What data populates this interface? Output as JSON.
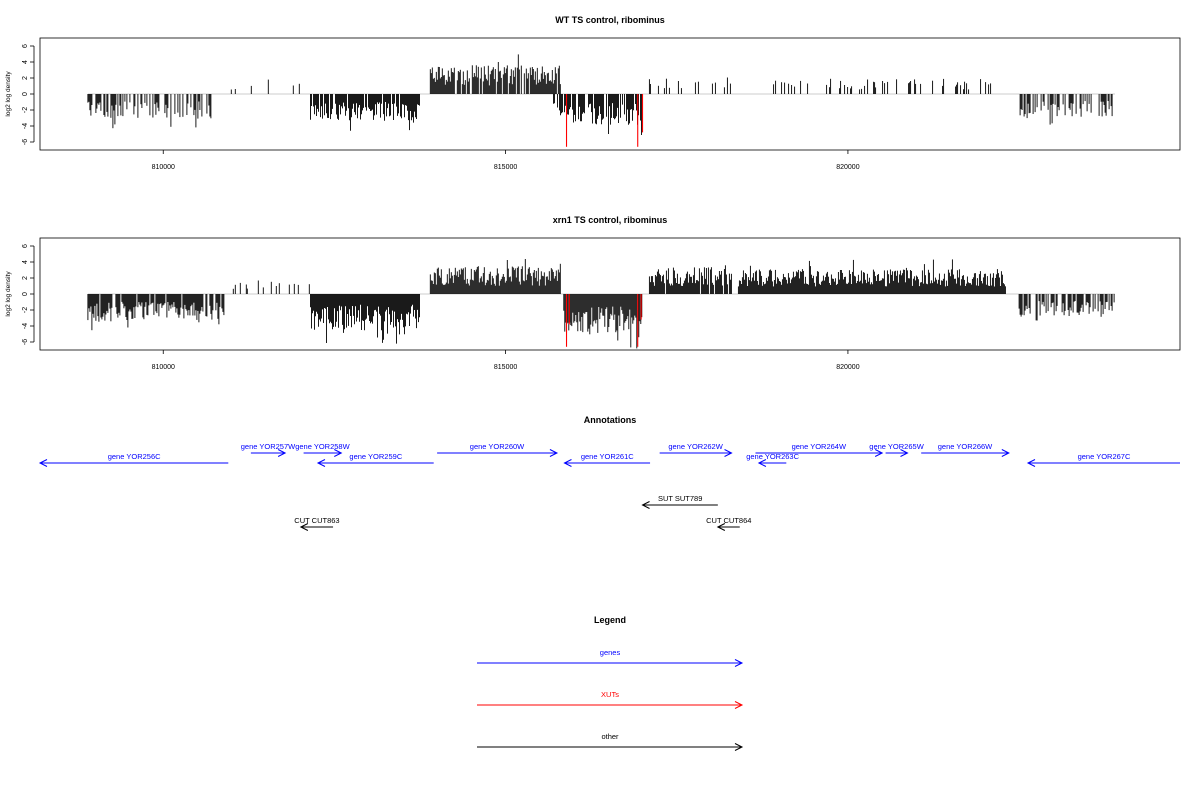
{
  "colors": {
    "gene": "#0000ff",
    "xut": "#ff0000",
    "other": "#000000",
    "bar": "#000000",
    "highlight": "#ff0000",
    "baseline": "#bdbdbd"
  },
  "chart_data": [
    {
      "type": "bar",
      "title": "WT TS control, ribominus",
      "ylabel": "log2 log density",
      "xlim": [
        808200,
        824850
      ],
      "ylim": [
        -7,
        7
      ],
      "yticks": [
        -6,
        -4,
        -2,
        0,
        2,
        4,
        6
      ],
      "xticks": [
        810000,
        815000,
        820000
      ],
      "xtick_labels": [
        "810000",
        "815000",
        "820000"
      ],
      "regions": [
        {
          "start": 808900,
          "end": 810700,
          "strand": "-",
          "level": 2.6,
          "density": 0.055
        },
        {
          "start": 810950,
          "end": 812150,
          "strand": "+",
          "level": 1.2,
          "density": 0.006
        },
        {
          "start": 812150,
          "end": 813750,
          "strand": "-",
          "level": 2.8,
          "density": 0.09
        },
        {
          "start": 813900,
          "end": 815800,
          "strand": "+",
          "level": 3.0,
          "density": 0.085
        },
        {
          "start": 815700,
          "end": 817000,
          "strand": "-",
          "level": 3.2,
          "density": 0.075
        },
        {
          "start": 817100,
          "end": 818300,
          "strand": "+",
          "level": 1.6,
          "density": 0.025
        },
        {
          "start": 818900,
          "end": 822300,
          "strand": "+",
          "level": 1.6,
          "density": 0.025
        },
        {
          "start": 822500,
          "end": 823900,
          "strand": "-",
          "level": 2.4,
          "density": 0.045
        }
      ],
      "highlights": [
        {
          "x": 815890,
          "value": -6.6
        },
        {
          "x": 816930,
          "value": -6.6
        },
        {
          "x": 817000,
          "value": -4.8
        }
      ]
    },
    {
      "type": "bar",
      "title": "xrn1 TS control, ribominus",
      "ylabel": "log2 log density",
      "xlim": [
        808200,
        824850
      ],
      "ylim": [
        -7,
        7
      ],
      "yticks": [
        -6,
        -4,
        -2,
        0,
        2,
        4,
        6
      ],
      "xticks": [
        810000,
        815000,
        820000
      ],
      "xtick_labels": [
        "810000",
        "815000",
        "820000"
      ],
      "regions": [
        {
          "start": 808900,
          "end": 810900,
          "strand": "-",
          "level": 2.8,
          "density": 0.09
        },
        {
          "start": 810950,
          "end": 812150,
          "strand": "+",
          "level": 1.3,
          "density": 0.02
        },
        {
          "start": 812150,
          "end": 813750,
          "strand": "-",
          "level": 3.8,
          "density": 0.16
        },
        {
          "start": 813900,
          "end": 815800,
          "strand": "+",
          "level": 2.9,
          "density": 0.14
        },
        {
          "start": 815850,
          "end": 817000,
          "strand": "-",
          "level": 4.2,
          "density": 0.16
        },
        {
          "start": 817100,
          "end": 818300,
          "strand": "+",
          "level": 2.8,
          "density": 0.09
        },
        {
          "start": 818400,
          "end": 822300,
          "strand": "+",
          "level": 2.6,
          "density": 0.1
        },
        {
          "start": 822500,
          "end": 823900,
          "strand": "-",
          "level": 2.4,
          "density": 0.06
        }
      ],
      "highlights": [
        {
          "x": 815890,
          "value": -6.6
        },
        {
          "x": 816930,
          "value": -6.6
        },
        {
          "x": 815930,
          "value": -3.8
        },
        {
          "x": 816980,
          "value": -3.2
        }
      ]
    }
  ],
  "annotations": {
    "title": "Annotations",
    "genes": [
      {
        "label": "gene YOR256C",
        "start": 808200,
        "end": 810950,
        "strand": "-",
        "row": 2
      },
      {
        "label": "gene YOR257W",
        "start": 811280,
        "end": 811780,
        "strand": "+",
        "row": 1
      },
      {
        "label": "gene YOR258W",
        "start": 812050,
        "end": 812600,
        "strand": "+",
        "row": 1
      },
      {
        "label": "gene YOR259C",
        "start": 812260,
        "end": 813950,
        "strand": "-",
        "row": 2
      },
      {
        "label": "gene YOR260W",
        "start": 814000,
        "end": 815750,
        "strand": "+",
        "row": 1
      },
      {
        "label": "gene YOR261C",
        "start": 815860,
        "end": 817110,
        "strand": "-",
        "row": 2
      },
      {
        "label": "gene YOR262W",
        "start": 817250,
        "end": 818300,
        "strand": "+",
        "row": 1
      },
      {
        "label": "gene YOR263C",
        "start": 818700,
        "end": 819100,
        "strand": "-",
        "row": 3
      },
      {
        "label": "gene YOR264W",
        "start": 818650,
        "end": 820500,
        "strand": "+",
        "row": 1
      },
      {
        "label": "gene YOR265W",
        "start": 820550,
        "end": 820870,
        "strand": "+",
        "row": 1
      },
      {
        "label": "gene YOR266W",
        "start": 821070,
        "end": 822350,
        "strand": "+",
        "row": 1
      },
      {
        "label": "gene YOR267C",
        "start": 822630,
        "end": 824850,
        "strand": "-",
        "row": 2
      }
    ],
    "other": [
      {
        "label": "SUT SUT789",
        "start": 817000,
        "end": 818100,
        "strand": "-",
        "row": 4
      },
      {
        "label": "CUT CUT863",
        "start": 812010,
        "end": 812480,
        "strand": "-",
        "row": 5
      },
      {
        "label": "CUT CUT864",
        "start": 818100,
        "end": 818420,
        "strand": "-",
        "row": 5
      }
    ]
  },
  "legend": {
    "title": "Legend",
    "items": [
      {
        "label": "genes",
        "color": "#0000ff"
      },
      {
        "label": "XUTs",
        "color": "#ff0000"
      },
      {
        "label": "other",
        "color": "#000000"
      }
    ]
  }
}
